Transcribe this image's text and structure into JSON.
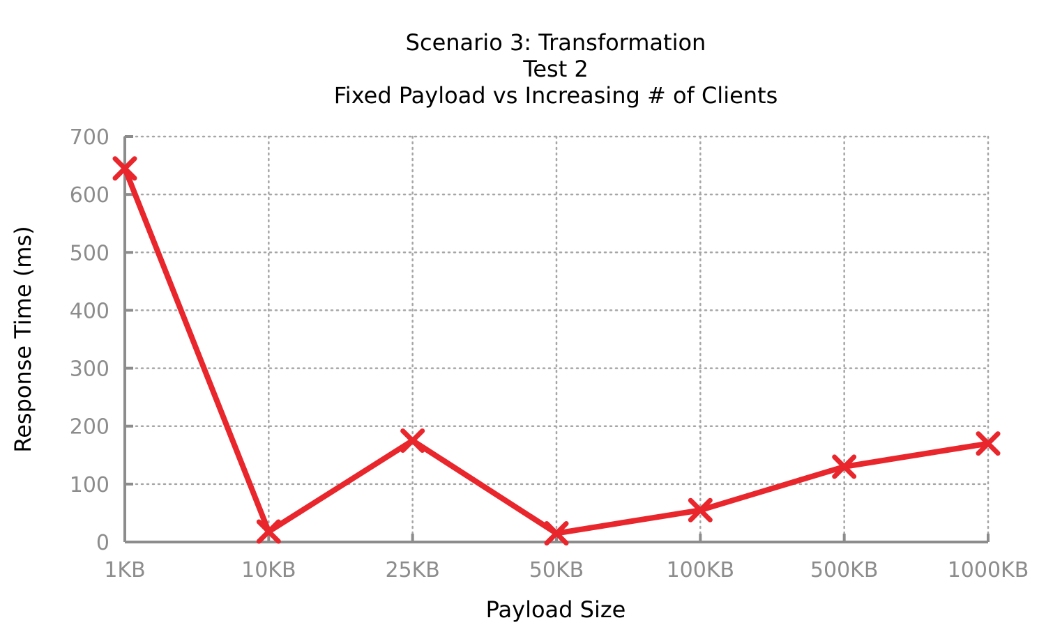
{
  "chart_data": {
    "type": "line",
    "title_lines": [
      "Scenario 3: Transformation",
      "Test 2",
      "Fixed Payload vs Increasing # of Clients"
    ],
    "xlabel": "Payload Size",
    "ylabel": "Response Time (ms)",
    "categories": [
      "1KB",
      "10KB",
      "25KB",
      "50KB",
      "100KB",
      "500KB",
      "1000KB"
    ],
    "series": [
      {
        "values": [
          645,
          18,
          175,
          15,
          55,
          130,
          170
        ],
        "color": "#e8262c",
        "marker": "x"
      }
    ],
    "ylim": [
      0,
      700
    ],
    "yticks": [
      0,
      100,
      200,
      300,
      400,
      500,
      600,
      700
    ],
    "grid": true
  }
}
